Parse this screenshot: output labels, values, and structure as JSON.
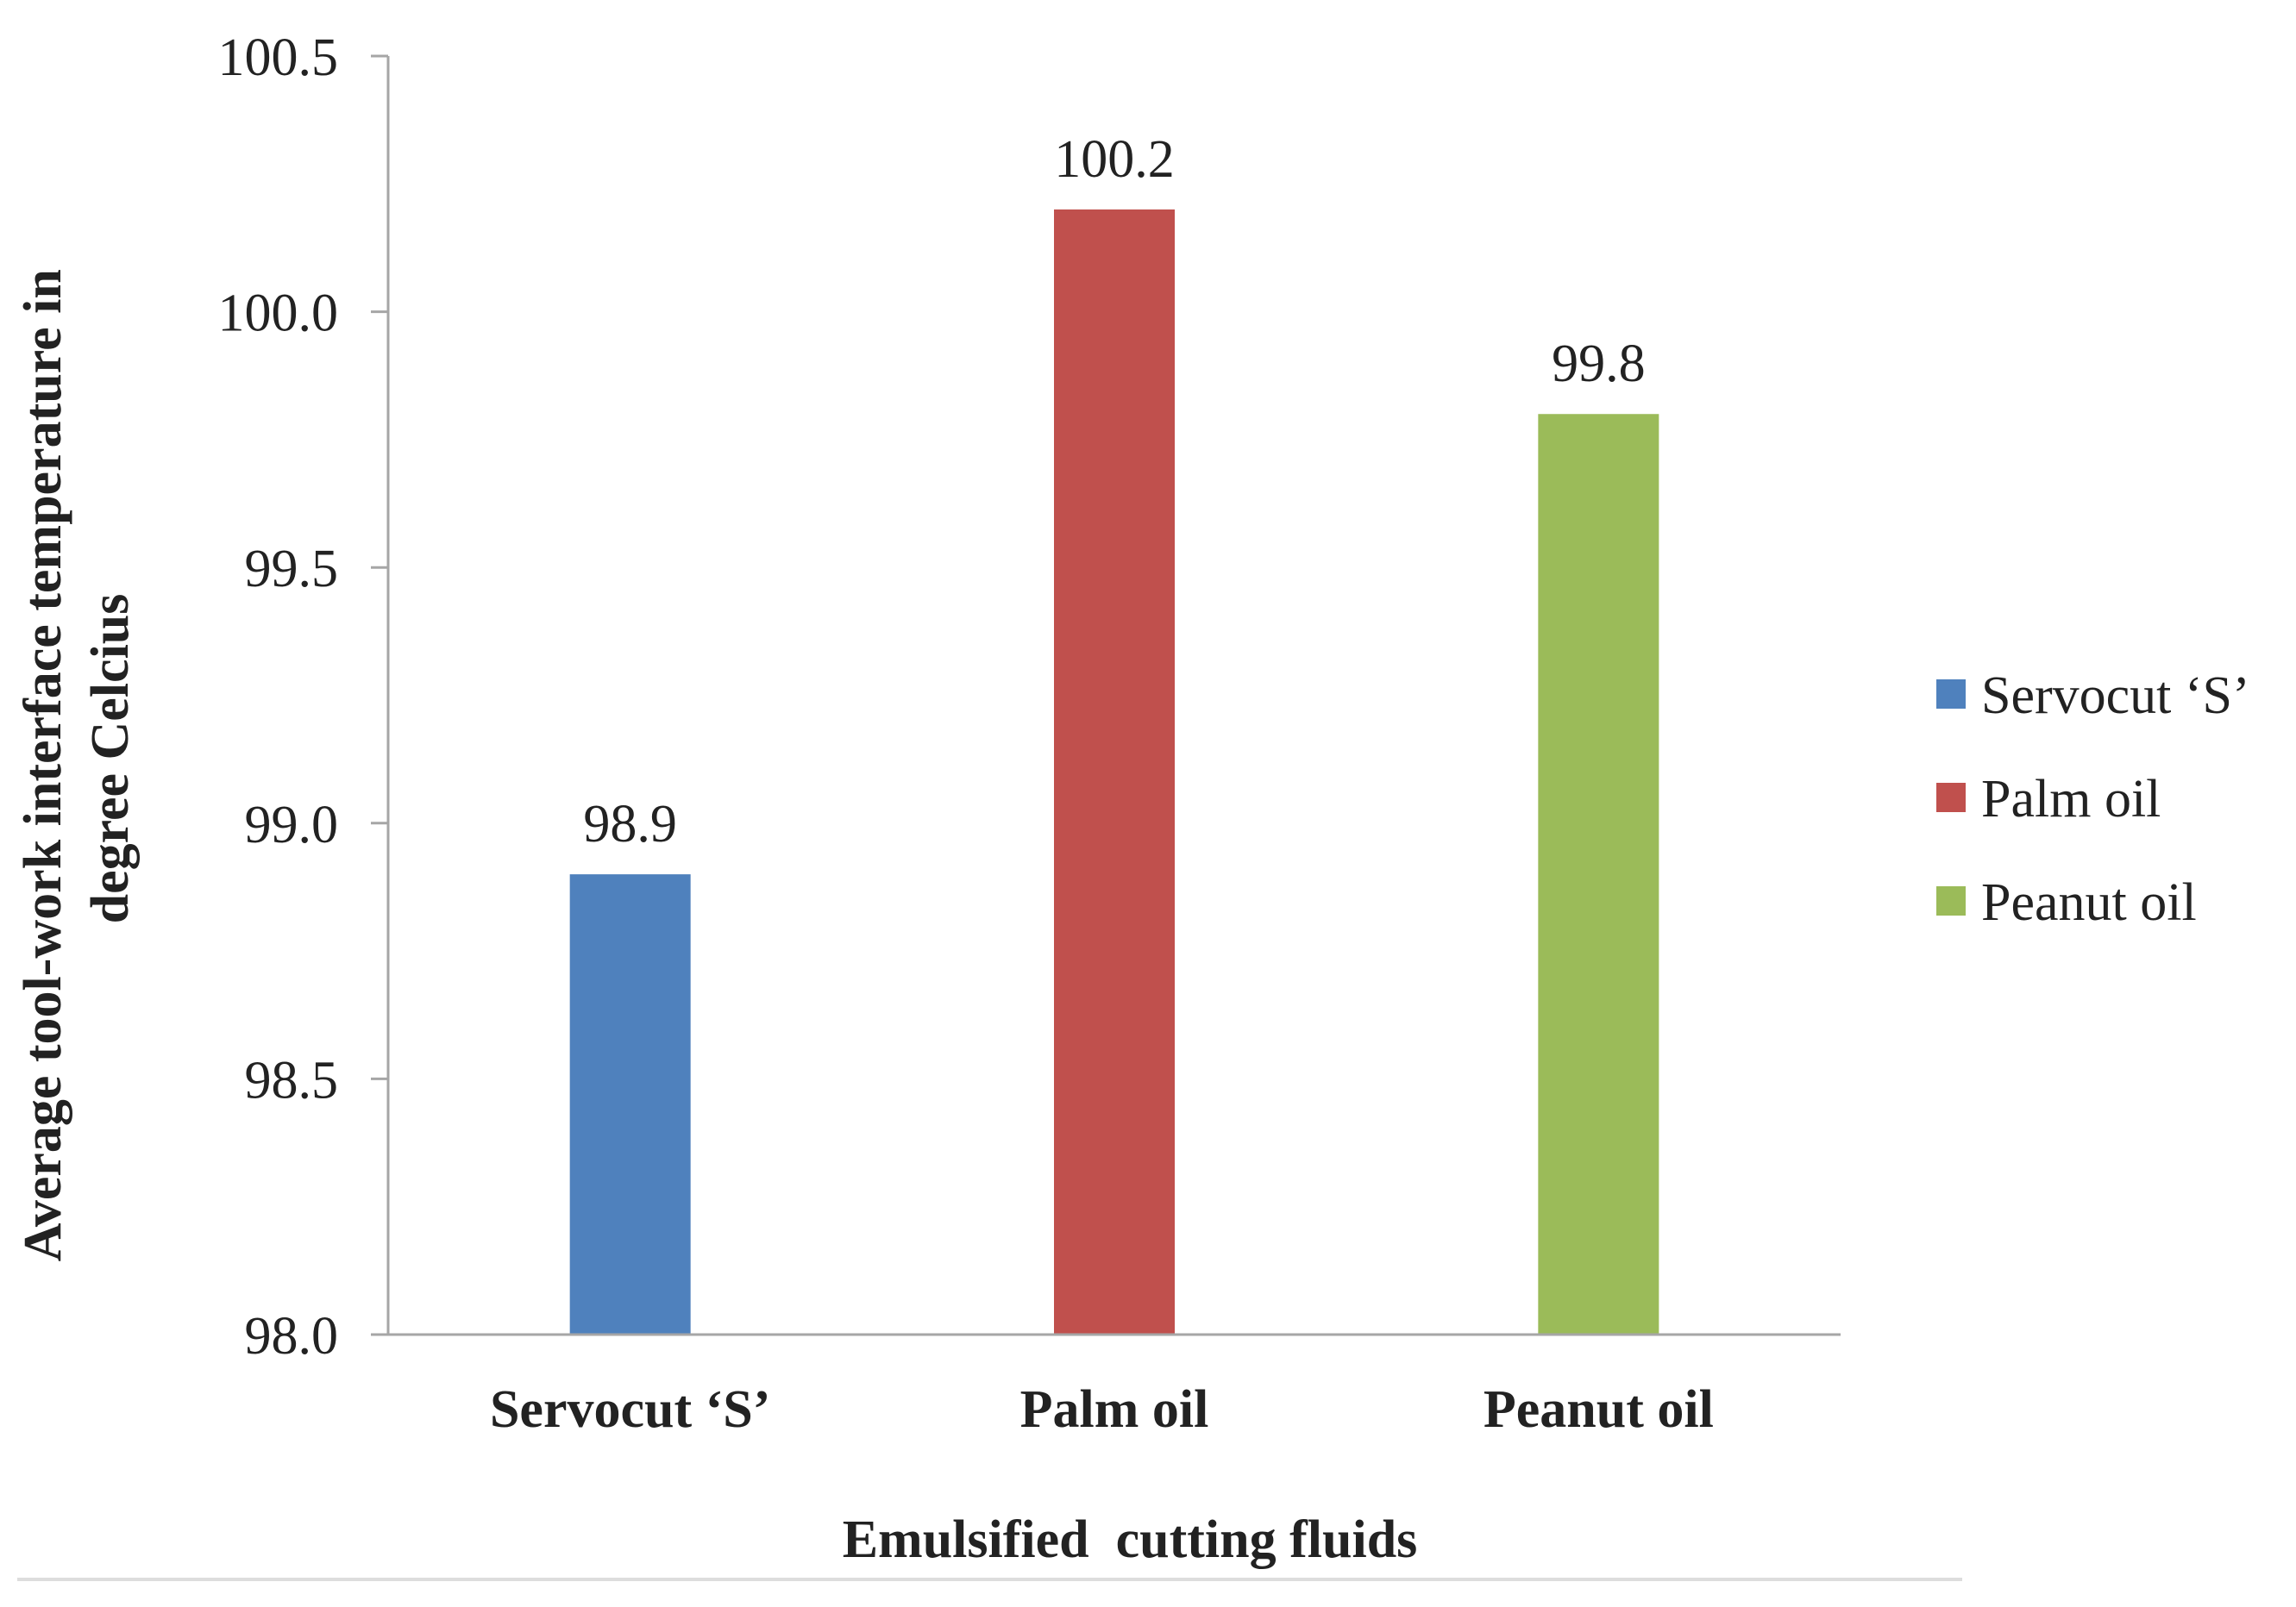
{
  "chart_data": {
    "type": "bar",
    "title": "",
    "categories": [
      "Servocut ‘S’",
      "Palm oil",
      "Peanut oil"
    ],
    "values": [
      98.9,
      100.2,
      99.8
    ],
    "data_labels": [
      "98.9",
      "100.2",
      "99.8"
    ],
    "colors": [
      "#4f81bd",
      "#c0504d",
      "#9bbb59"
    ],
    "xlabel": "Emulsified  cutting fluids",
    "ylabel_lines": [
      "Average tool-work interface temperature in",
      "degree Celcius"
    ],
    "ylim": [
      98.0,
      100.5
    ],
    "yticks": [
      98.0,
      98.5,
      99.0,
      99.5,
      100.0,
      100.5
    ],
    "ytick_labels": [
      "98.0",
      "98.5",
      "99.0",
      "99.5",
      "100.0",
      "100.5"
    ],
    "grid": false,
    "legend": {
      "position": "right",
      "entries": [
        "Servocut ‘S’",
        "Palm oil",
        "Peanut oil"
      ]
    }
  }
}
